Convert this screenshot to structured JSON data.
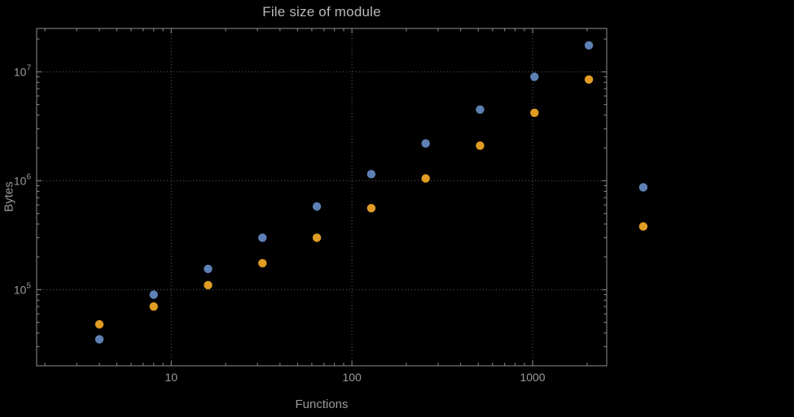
{
  "chart_data": {
    "type": "scatter",
    "title": "File size of module",
    "xlabel": "Functions",
    "ylabel": "Bytes",
    "xscale": "log",
    "yscale": "log",
    "xlim": [
      1.8,
      2570
    ],
    "ylim": [
      20000,
      25000000
    ],
    "grid": true,
    "legend": "none",
    "x": [
      4,
      8,
      16,
      32,
      64,
      128,
      256,
      512,
      1024,
      2048,
      4096
    ],
    "series": [
      {
        "name": "series-blue",
        "color": "#5E81B5",
        "values": [
          35000,
          90000,
          155000,
          300000,
          580000,
          1150000,
          2200000,
          4500000,
          9000000,
          17500000,
          870000
        ]
      },
      {
        "name": "series-orange",
        "color": "#E19C24",
        "values": [
          48000,
          70000,
          110000,
          175000,
          300000,
          560000,
          1050000,
          2100000,
          4200000,
          8500000,
          380000
        ]
      }
    ],
    "x_ticks": [
      {
        "value": 10,
        "label": "10"
      },
      {
        "value": 100,
        "label": "100"
      },
      {
        "value": 1000,
        "label": "1000"
      }
    ],
    "y_ticks": [
      {
        "value": 100000,
        "base": "10",
        "exp": "5"
      },
      {
        "value": 1000000,
        "base": "10",
        "exp": "6"
      },
      {
        "value": 10000000,
        "base": "10",
        "exp": "7"
      }
    ],
    "style": {
      "background": "#000000",
      "frame_color": "#8f8f8f",
      "grid_color": "#5c5c5c",
      "text_color": "#9a9a9a",
      "title_color": "#b8b8b8",
      "point_radius": 5.2
    }
  }
}
